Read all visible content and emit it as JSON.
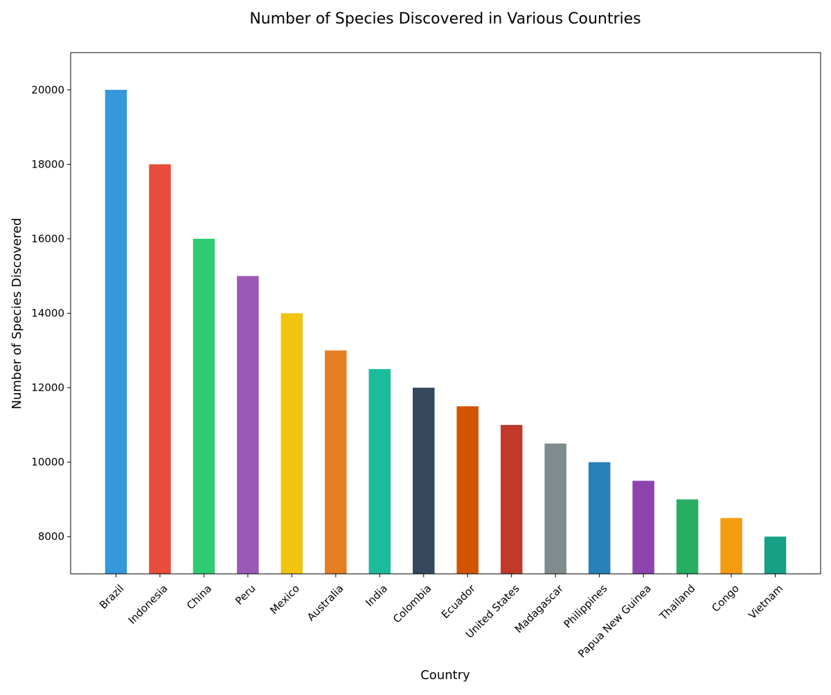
{
  "chart_data": {
    "type": "bar",
    "title": "Number of Species Discovered in Various Countries",
    "xlabel": "Country",
    "ylabel": "Number of Species Discovered",
    "categories": [
      "Brazil",
      "Indonesia",
      "China",
      "Peru",
      "Mexico",
      "Australia",
      "India",
      "Colombia",
      "Ecuador",
      "United States",
      "Madagascar",
      "Philippines",
      "Papua New Guinea",
      "Thailand",
      "Congo",
      "Vietnam"
    ],
    "values": [
      20000,
      18000,
      16000,
      15000,
      14000,
      13000,
      12500,
      12000,
      11500,
      11000,
      10500,
      10000,
      9500,
      9000,
      8500,
      8000
    ],
    "colors": [
      "#3498db",
      "#e74c3c",
      "#2ecc71",
      "#9b59b6",
      "#f1c40f",
      "#e67e22",
      "#1abc9c",
      "#34495e",
      "#d35400",
      "#c0392b",
      "#7f8c8d",
      "#2980b9",
      "#8e44ad",
      "#27ae60",
      "#f39c12",
      "#16a085"
    ],
    "ylim": [
      7000,
      21000
    ],
    "yticks": [
      8000,
      10000,
      12000,
      14000,
      16000,
      18000,
      20000
    ],
    "grid": false,
    "legend": "none"
  }
}
